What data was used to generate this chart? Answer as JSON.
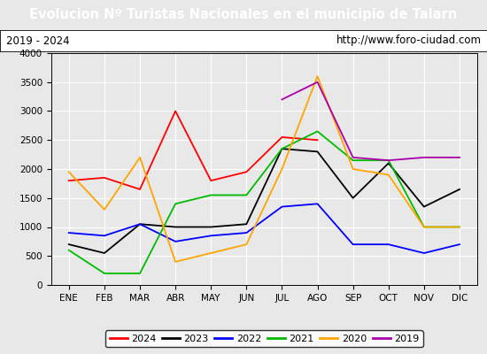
{
  "title": "Evolucion Nº Turistas Nacionales en el municipio de Talarn",
  "subtitle_left": "2019 - 2024",
  "subtitle_right": "http://www.foro-ciudad.com",
  "months": [
    "ENE",
    "FEB",
    "MAR",
    "ABR",
    "MAY",
    "JUN",
    "JUL",
    "AGO",
    "SEP",
    "OCT",
    "NOV",
    "DIC"
  ],
  "ylim": [
    0,
    4000
  ],
  "yticks": [
    0,
    500,
    1000,
    1500,
    2000,
    2500,
    3000,
    3500,
    4000
  ],
  "series": {
    "2024": {
      "color": "#ff0000",
      "values": [
        1800,
        1850,
        1650,
        3000,
        1800,
        1950,
        2550,
        2500,
        null,
        null,
        null,
        null
      ]
    },
    "2023": {
      "color": "#000000",
      "values": [
        700,
        550,
        1050,
        1000,
        1000,
        1050,
        2350,
        2300,
        1500,
        2100,
        1350,
        1650
      ]
    },
    "2022": {
      "color": "#0000ff",
      "values": [
        900,
        850,
        1050,
        750,
        850,
        900,
        1350,
        1400,
        700,
        700,
        550,
        700
      ]
    },
    "2021": {
      "color": "#00bb00",
      "values": [
        600,
        200,
        200,
        1400,
        1550,
        1550,
        2350,
        2650,
        2150,
        2150,
        1000,
        1000
      ]
    },
    "2020": {
      "color": "#ffa500",
      "values": [
        1950,
        1300,
        2200,
        400,
        550,
        700,
        2000,
        3600,
        2000,
        1900,
        1000,
        1000
      ]
    },
    "2019": {
      "color": "#aa00aa",
      "values": [
        null,
        null,
        null,
        null,
        null,
        null,
        3200,
        3500,
        2200,
        2150,
        2200,
        2200
      ]
    }
  },
  "title_bg_color": "#4472c4",
  "title_text_color": "#ffffff",
  "plot_bg_color": "#e8e8e8",
  "fig_bg_color": "#e8e8e8",
  "grid_color": "#ffffff",
  "border_color": "#000000",
  "subtitle_box_color": "#ffffff",
  "title_fontsize": 10.5,
  "subtitle_fontsize": 8.5,
  "tick_fontsize": 7.5,
  "legend_fontsize": 8
}
